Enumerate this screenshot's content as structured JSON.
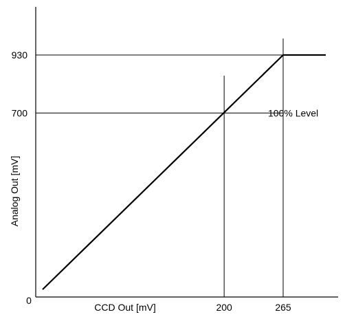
{
  "chart_data": {
    "type": "line",
    "title": "",
    "xlabel": "CCD Out [mV]",
    "ylabel": "Analog Out [mV]",
    "origin_label": "0",
    "x_ticks": [
      "200",
      "265"
    ],
    "y_ticks": [
      "930",
      "700"
    ],
    "xlim": [
      0,
      310
    ],
    "ylim": [
      0,
      1120
    ],
    "series": [
      {
        "x": [
          0,
          265,
          310
        ],
        "y": [
          0,
          930,
          930
        ]
      }
    ],
    "reference_lines": [
      {
        "axis": "y",
        "value": 930
      },
      {
        "axis": "y",
        "value": 700
      },
      {
        "axis": "x",
        "value": 200
      },
      {
        "axis": "x",
        "value": 265
      }
    ],
    "annotation": "100% Level",
    "grid": false,
    "legend": "none",
    "line_color": "#000000"
  }
}
